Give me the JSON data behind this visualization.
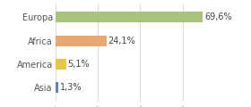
{
  "categories": [
    "Asia",
    "America",
    "Africa",
    "Europa"
  ],
  "values": [
    1.3,
    5.1,
    24.1,
    69.6
  ],
  "labels": [
    "1,3%",
    "5,1%",
    "24,1%",
    "69,6%"
  ],
  "bar_colors": [
    "#6080c8",
    "#e8c840",
    "#e8a870",
    "#a8c47a"
  ],
  "background_color": "#ffffff",
  "xlim": [
    0,
    78
  ],
  "bar_height": 0.45,
  "label_fontsize": 7.0,
  "tick_fontsize": 7.0,
  "grid_color": "#cccccc"
}
